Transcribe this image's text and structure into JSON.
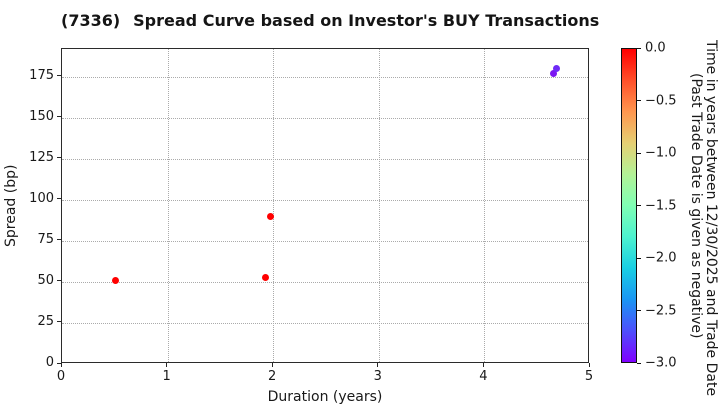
{
  "title": {
    "code": "(7336)",
    "text": "Spread Curve based on Investor's BUY Transactions"
  },
  "chart_data": {
    "type": "scatter",
    "title": "(7336)   Spread Curve based on Investor's BUY Transactions",
    "xlabel": "Duration (years)",
    "ylabel": "Spread (bp)",
    "xlim": [
      0,
      5
    ],
    "ylim": [
      0,
      192
    ],
    "xticks": [
      0,
      1,
      2,
      3,
      4,
      5
    ],
    "yticks": [
      0,
      25,
      50,
      75,
      100,
      125,
      150,
      175
    ],
    "grid": true,
    "points": [
      {
        "duration": 0.51,
        "spread": 51,
        "time_years": 0.0,
        "color": "#ff0000"
      },
      {
        "duration": 1.93,
        "spread": 53,
        "time_years": 0.0,
        "color": "#ff0000"
      },
      {
        "duration": 1.97,
        "spread": 90,
        "time_years": 0.0,
        "color": "#ff0000"
      },
      {
        "duration": 4.65,
        "spread": 177,
        "time_years": -2.9,
        "color": "#7b16f2"
      },
      {
        "duration": 4.68,
        "spread": 180,
        "time_years": -2.85,
        "color": "#6f2bf7"
      }
    ],
    "colorbar": {
      "label_line1": "Time in years between 12/30/2025 and Trade Date",
      "label_line2": "(Past Trade Date is given as negative)",
      "ticks": [
        "0.0",
        "−0.5",
        "−1.0",
        "−1.5",
        "−2.0",
        "−2.5",
        "−3.0"
      ],
      "range": [
        0.0,
        -3.0
      ],
      "gradient": [
        "#ff0000",
        "#ff4f29",
        "#ff964f",
        "#e6cf73",
        "#b3f296",
        "#80ffb4",
        "#4df2cf",
        "#19cfe3",
        "#1a96f3",
        "#4d4ffc",
        "#8000ff"
      ]
    }
  }
}
